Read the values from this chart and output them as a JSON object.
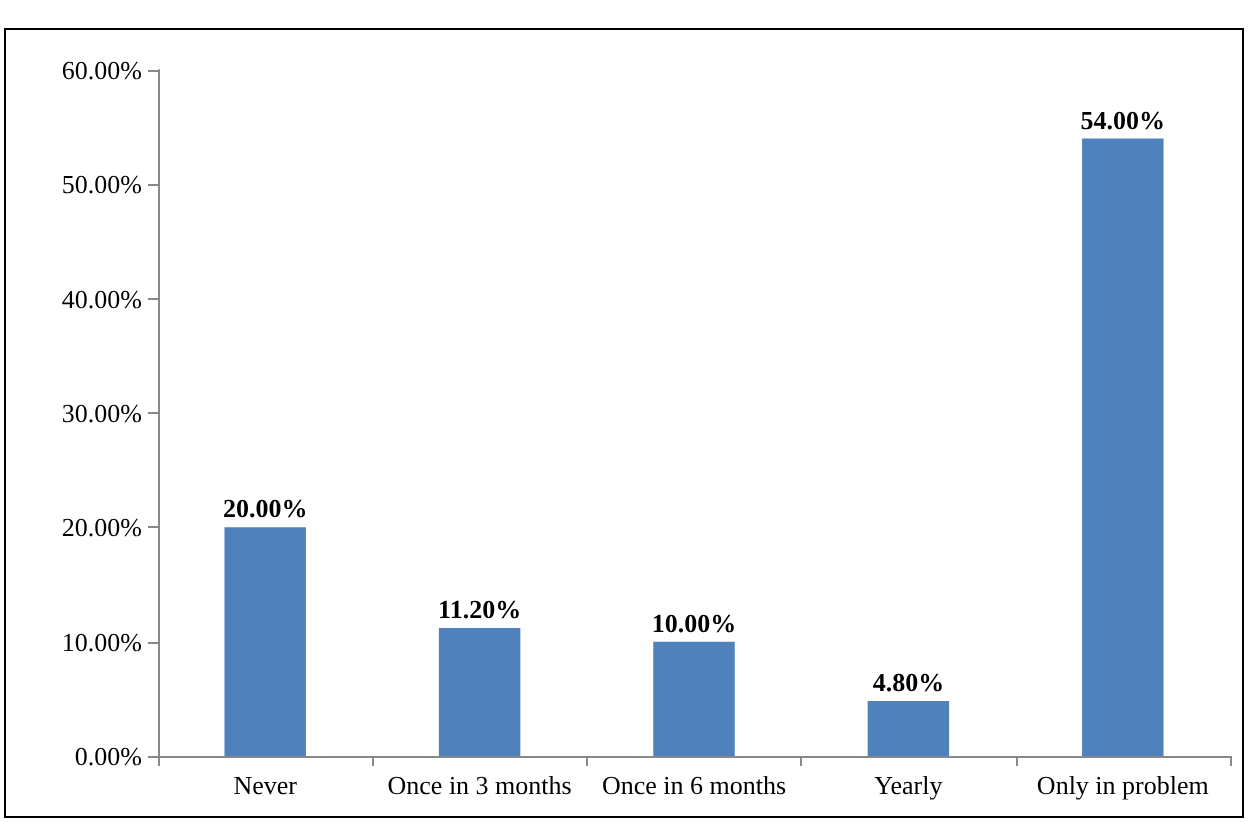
{
  "chart_data": {
    "type": "bar",
    "categories": [
      "Never",
      "Once in 3 months",
      "Once in 6 months",
      "Yearly",
      "Only in problem"
    ],
    "values": [
      20,
      11.2,
      10,
      4.8,
      54
    ],
    "color": "#4f81bd",
    "value_labels": [
      "20.00%",
      "11.20%",
      "10.00%",
      "4.80%",
      "54.00%"
    ],
    "ylim": [
      0,
      60
    ],
    "yticks": [
      {
        "value": 0,
        "label": "0.00%"
      },
      {
        "value": 10,
        "label": "10.00%"
      },
      {
        "value": 20,
        "label": "20.00%"
      },
      {
        "value": 30,
        "label": "30.00%"
      },
      {
        "value": 40,
        "label": "40.00%"
      },
      {
        "value": 50,
        "label": "50.00%"
      },
      {
        "value": 60,
        "label": "60.00%"
      }
    ],
    "grid": false
  }
}
